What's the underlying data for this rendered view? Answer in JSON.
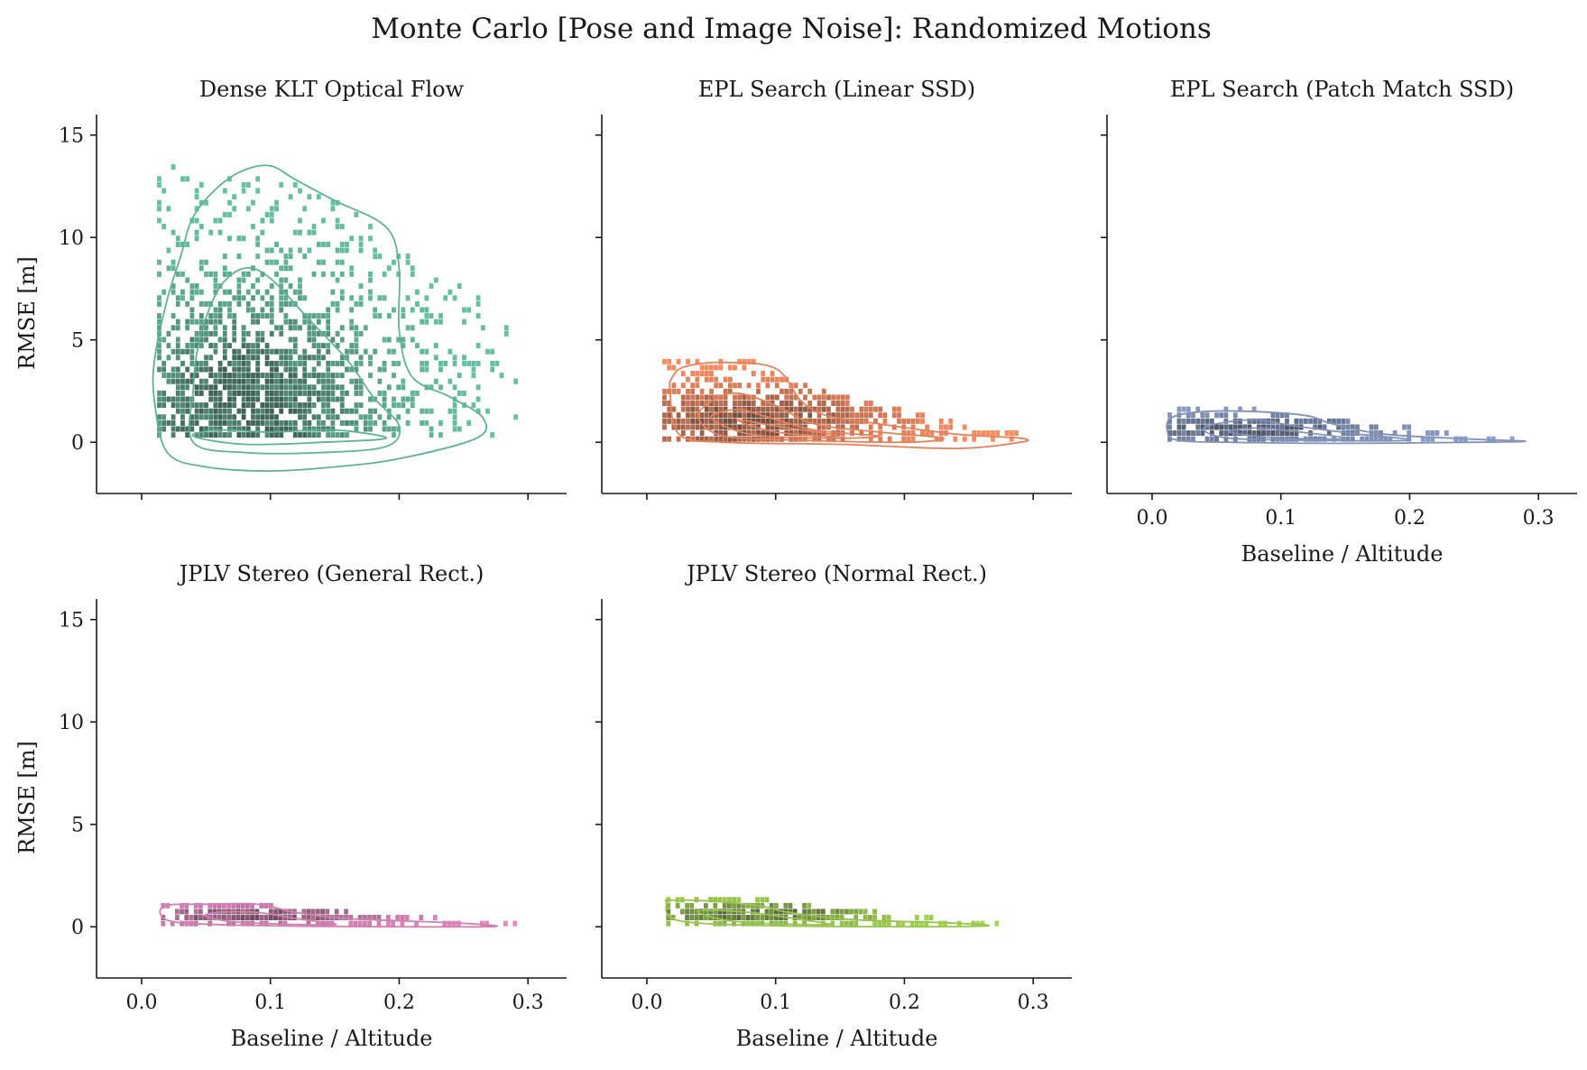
{
  "figure_title": "Monte Carlo [Pose and Image Noise]: Randomized Motions",
  "chart_data": [
    {
      "type": "heatmap",
      "title": "Dense KLT Optical Flow",
      "color": "#66c2a5",
      "xlabel": "",
      "ylabel": "RMSE [m]",
      "xlim": [
        -0.035,
        0.33
      ],
      "ylim": [
        -2.5,
        16
      ],
      "xticks": [
        "0.0",
        "0.1",
        "0.2",
        "0.3"
      ],
      "yticks": [
        "0",
        "5",
        "10",
        "15"
      ],
      "x_tick_labels_visible": false,
      "y_tick_labels_visible": true,
      "cloud": {
        "x_min": 0.012,
        "x_max": 0.29,
        "y_min": 0.2,
        "y_max": 13.5,
        "x_peak": 0.08,
        "y_peak": 1.5,
        "density": "broad"
      },
      "kde_contours": [
        [
          [
            0.01,
            2
          ],
          [
            0.02,
            -0.5
          ],
          [
            0.05,
            -1.2
          ],
          [
            0.1,
            -1.4
          ],
          [
            0.15,
            -1.2
          ],
          [
            0.2,
            -0.8
          ],
          [
            0.26,
            0.2
          ],
          [
            0.265,
            1.2
          ],
          [
            0.24,
            2.2
          ],
          [
            0.21,
            3.2
          ],
          [
            0.2,
            5.5
          ],
          [
            0.2,
            8.5
          ],
          [
            0.19,
            10.5
          ],
          [
            0.15,
            11.8
          ],
          [
            0.12,
            12.8
          ],
          [
            0.1,
            13.5
          ],
          [
            0.08,
            13.3
          ],
          [
            0.06,
            12.5
          ],
          [
            0.04,
            11
          ],
          [
            0.03,
            9
          ],
          [
            0.02,
            7
          ],
          [
            0.01,
            4
          ]
        ],
        [
          [
            0.04,
            0
          ],
          [
            0.08,
            -0.5
          ],
          [
            0.14,
            -0.5
          ],
          [
            0.19,
            -0.2
          ],
          [
            0.2,
            0.8
          ],
          [
            0.18,
            2.2
          ],
          [
            0.16,
            4
          ],
          [
            0.13,
            6
          ],
          [
            0.1,
            8
          ],
          [
            0.08,
            8.5
          ],
          [
            0.06,
            7.5
          ],
          [
            0.045,
            5
          ],
          [
            0.04,
            2.5
          ]
        ],
        [
          [
            0.04,
            0.3
          ],
          [
            0.08,
            -0.1
          ],
          [
            0.14,
            0
          ],
          [
            0.19,
            0.2
          ],
          [
            0.15,
            0.6
          ],
          [
            0.1,
            0.5
          ],
          [
            0.06,
            0.6
          ]
        ]
      ]
    },
    {
      "type": "heatmap",
      "title": "EPL Search (Linear SSD)",
      "color": "#fc8d62",
      "xlabel": "",
      "ylabel": "",
      "xlim": [
        -0.035,
        0.33
      ],
      "ylim": [
        -2.5,
        16
      ],
      "xticks": [
        "0.0",
        "0.1",
        "0.2",
        "0.3"
      ],
      "yticks": [
        "0",
        "5",
        "10",
        "15"
      ],
      "x_tick_labels_visible": false,
      "y_tick_labels_visible": false,
      "cloud": {
        "x_min": 0.012,
        "x_max": 0.29,
        "y_min": 0.0,
        "y_max": 3.8,
        "x_peak": 0.08,
        "y_peak": 0.9,
        "density": "medium"
      },
      "kde_contours": [
        [
          [
            0.018,
            2.5
          ],
          [
            0.025,
            0.4
          ],
          [
            0.06,
            0
          ],
          [
            0.15,
            -0.1
          ],
          [
            0.24,
            -0.3
          ],
          [
            0.29,
            0
          ],
          [
            0.29,
            0.2
          ],
          [
            0.24,
            0.4
          ],
          [
            0.18,
            0.9
          ],
          [
            0.14,
            1.3
          ],
          [
            0.12,
            2
          ],
          [
            0.1,
            3.6
          ],
          [
            0.06,
            3.9
          ],
          [
            0.03,
            3.7
          ],
          [
            0.02,
            3.2
          ]
        ],
        [
          [
            0.04,
            1.2
          ],
          [
            0.06,
            0.3
          ],
          [
            0.12,
            0.1
          ],
          [
            0.2,
            0
          ],
          [
            0.23,
            0.2
          ],
          [
            0.18,
            0.5
          ],
          [
            0.13,
            0.9
          ],
          [
            0.1,
            1.8
          ],
          [
            0.07,
            2.4
          ],
          [
            0.05,
            2
          ]
        ],
        [
          [
            0.05,
            1.2
          ],
          [
            0.08,
            0.4
          ],
          [
            0.14,
            0.2
          ],
          [
            0.18,
            0.3
          ],
          [
            0.13,
            0.6
          ],
          [
            0.09,
            1.3
          ],
          [
            0.07,
            1.6
          ]
        ],
        [
          [
            0.07,
            1.1
          ],
          [
            0.1,
            0.5
          ],
          [
            0.15,
            0.3
          ],
          [
            0.1,
            0.8
          ]
        ]
      ]
    },
    {
      "type": "heatmap",
      "title": "EPL Search (Patch Match SSD)",
      "color": "#8da0cb",
      "xlabel": "Baseline / Altitude",
      "ylabel": "",
      "xlim": [
        -0.035,
        0.33
      ],
      "ylim": [
        -2.5,
        16
      ],
      "xticks": [
        "0.0",
        "0.1",
        "0.2",
        "0.3"
      ],
      "yticks": [
        "0",
        "5",
        "10",
        "15"
      ],
      "x_tick_labels_visible": true,
      "y_tick_labels_visible": false,
      "cloud": {
        "x_min": 0.012,
        "x_max": 0.29,
        "y_min": 0.0,
        "y_max": 1.6,
        "x_peak": 0.08,
        "y_peak": 0.5,
        "density": "tight"
      },
      "kde_contours": [
        [
          [
            0.012,
            0.5
          ],
          [
            0.02,
            0.1
          ],
          [
            0.06,
            0
          ],
          [
            0.15,
            -0.05
          ],
          [
            0.25,
            0
          ],
          [
            0.29,
            0.05
          ],
          [
            0.25,
            0.15
          ],
          [
            0.18,
            0.4
          ],
          [
            0.14,
            0.9
          ],
          [
            0.12,
            1.3
          ],
          [
            0.08,
            1.5
          ],
          [
            0.04,
            1.5
          ],
          [
            0.015,
            1.2
          ]
        ],
        [
          [
            0.04,
            0.6
          ],
          [
            0.06,
            0.2
          ],
          [
            0.12,
            0.1
          ],
          [
            0.2,
            0.1
          ],
          [
            0.16,
            0.4
          ],
          [
            0.11,
            0.8
          ],
          [
            0.08,
            1.1
          ],
          [
            0.05,
            0.9
          ]
        ],
        [
          [
            0.06,
            0.5
          ],
          [
            0.1,
            0.2
          ],
          [
            0.15,
            0.2
          ],
          [
            0.1,
            0.6
          ],
          [
            0.08,
            0.7
          ]
        ]
      ]
    },
    {
      "type": "heatmap",
      "title": "JPLV Stereo (General Rect.)",
      "color": "#e78ac3",
      "xlabel": "Baseline / Altitude",
      "ylabel": "RMSE [m]",
      "xlim": [
        -0.035,
        0.33
      ],
      "ylim": [
        -2.5,
        16
      ],
      "xticks": [
        "0.0",
        "0.1",
        "0.2",
        "0.3"
      ],
      "yticks": [
        "0",
        "5",
        "10",
        "15"
      ],
      "x_tick_labels_visible": true,
      "y_tick_labels_visible": true,
      "cloud": {
        "x_min": 0.015,
        "x_max": 0.29,
        "y_min": 0.0,
        "y_max": 1.1,
        "x_peak": 0.09,
        "y_peak": 0.4,
        "density": "tight"
      },
      "kde_contours": [
        [
          [
            0.015,
            0.6
          ],
          [
            0.03,
            0.2
          ],
          [
            0.1,
            0.05
          ],
          [
            0.2,
            0
          ],
          [
            0.275,
            0.02
          ],
          [
            0.24,
            0.2
          ],
          [
            0.16,
            0.4
          ],
          [
            0.12,
            0.7
          ],
          [
            0.09,
            1.1
          ],
          [
            0.05,
            1.1
          ],
          [
            0.02,
            1.05
          ]
        ],
        [
          [
            0.05,
            0.5
          ],
          [
            0.08,
            0.2
          ],
          [
            0.15,
            0.1
          ],
          [
            0.12,
            0.4
          ],
          [
            0.09,
            0.7
          ],
          [
            0.06,
            0.7
          ]
        ]
      ]
    },
    {
      "type": "heatmap",
      "title": "JPLV Stereo (Normal Rect.)",
      "color": "#a6d854",
      "xlabel": "Baseline / Altitude",
      "ylabel": "",
      "xlim": [
        -0.035,
        0.33
      ],
      "ylim": [
        -2.5,
        16
      ],
      "xticks": [
        "0.0",
        "0.1",
        "0.2",
        "0.3"
      ],
      "yticks": [
        "0",
        "5",
        "10",
        "15"
      ],
      "x_tick_labels_visible": true,
      "y_tick_labels_visible": false,
      "cloud": {
        "x_min": 0.015,
        "x_max": 0.29,
        "y_min": 0.0,
        "y_max": 1.3,
        "x_peak": 0.08,
        "y_peak": 0.5,
        "density": "tight"
      },
      "kde_contours": [
        [
          [
            0.015,
            1.2
          ],
          [
            0.025,
            0.3
          ],
          [
            0.1,
            0.05
          ],
          [
            0.2,
            0
          ],
          [
            0.265,
            0.05
          ],
          [
            0.23,
            0.2
          ],
          [
            0.16,
            0.35
          ],
          [
            0.11,
            0.7
          ],
          [
            0.09,
            1
          ],
          [
            0.05,
            1.25
          ],
          [
            0.02,
            1.3
          ]
        ],
        [
          [
            0.04,
            0.7
          ],
          [
            0.07,
            0.25
          ],
          [
            0.14,
            0.1
          ],
          [
            0.12,
            0.35
          ],
          [
            0.08,
            0.7
          ],
          [
            0.05,
            0.8
          ]
        ]
      ]
    }
  ]
}
